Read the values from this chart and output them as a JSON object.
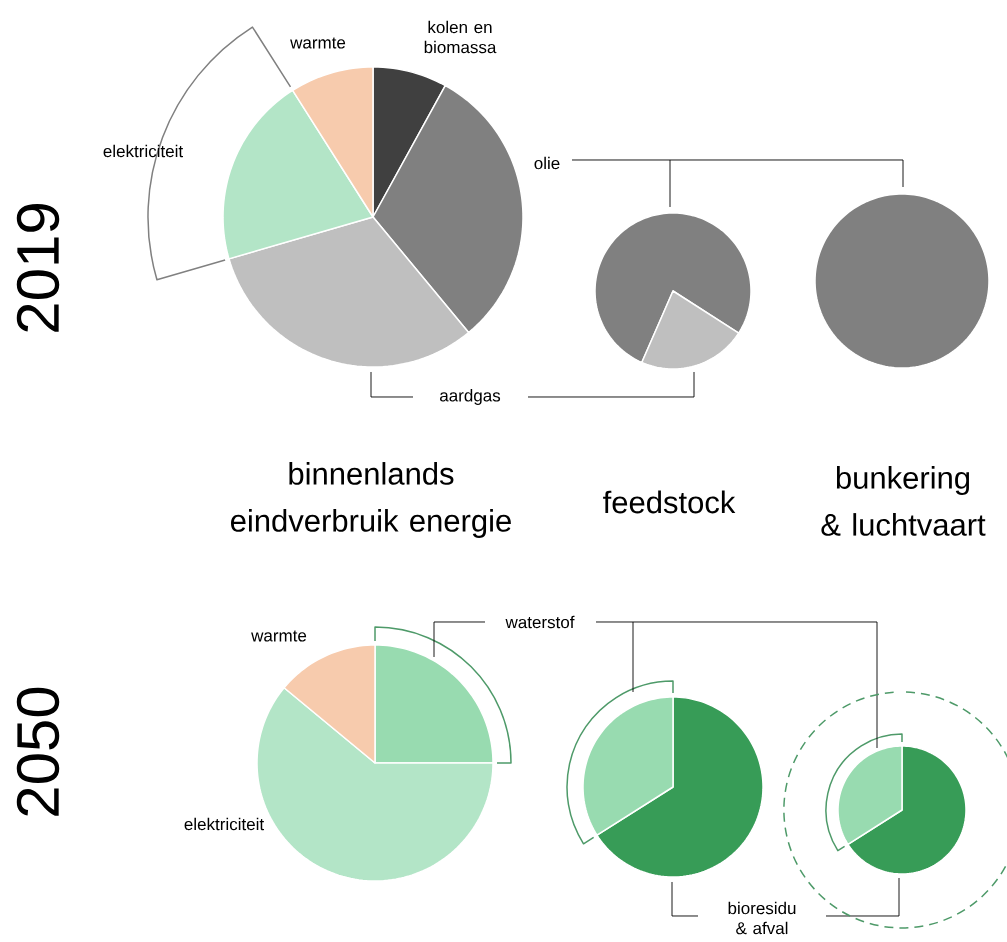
{
  "chart_data": [
    {
      "type": "pie",
      "title": "binnenlands eindverbruik energie",
      "annotations": [
        "2019"
      ],
      "categories": [
        "kolen en biomassa",
        "olie",
        "aardgas",
        "elektriciteit",
        "warmte"
      ],
      "values": [
        8,
        31,
        31.5,
        20.5,
        9
      ],
      "colors": [
        "#404040",
        "#808080",
        "#bfbfbf",
        "#b3e5c7",
        "#f7cbad"
      ]
    },
    {
      "type": "pie",
      "title": "feedstock",
      "categories": [
        null,
        null
      ],
      "values": [
        77.5,
        22.5
      ],
      "colors": [
        "#808080",
        "#bfbfbf"
      ]
    },
    {
      "type": "pie",
      "title": "bunkering & luchtvaart",
      "categories": [
        null
      ],
      "values": [
        100
      ],
      "colors": [
        "#808080"
      ]
    },
    {
      "type": "pie",
      "annotations": [
        "2050"
      ],
      "categories": [
        "waterstof",
        "elektriciteit",
        "warmte"
      ],
      "values": [
        25,
        61,
        14
      ],
      "colors": [
        "#98dbb0",
        "#b3e5c7",
        "#f7cbad"
      ]
    },
    {
      "type": "pie",
      "categories": [
        "bioresidu & afval",
        null
      ],
      "values": [
        66,
        34
      ],
      "colors": [
        "#379c57",
        "#98dbb0"
      ]
    },
    {
      "type": "pie",
      "categories": [
        null,
        null
      ],
      "values": [
        66,
        34
      ],
      "colors": [
        "#379c57",
        "#98dbb0"
      ]
    }
  ]
}
